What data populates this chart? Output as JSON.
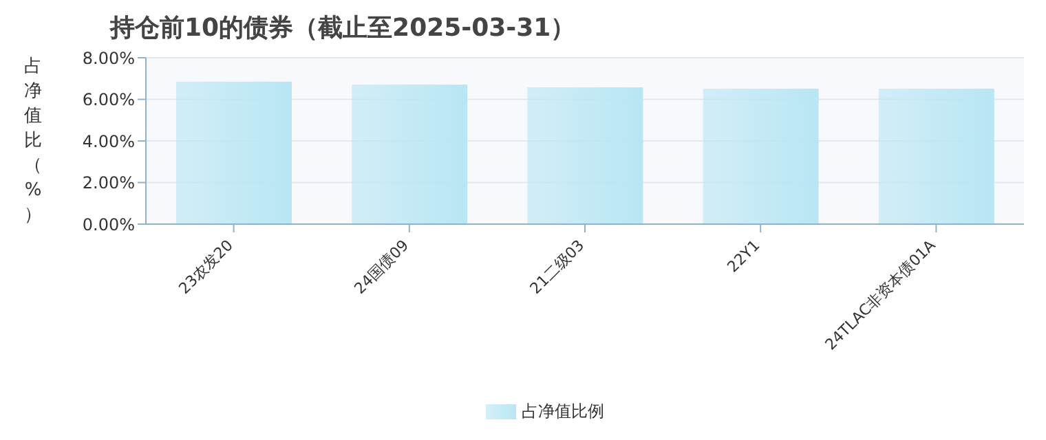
{
  "chart_data": {
    "type": "bar",
    "title": "持仓前10的债券（截止至2025-03-31）",
    "ylabel": "占净值比（%）",
    "categories": [
      "23农发20",
      "24国债09",
      "21二级03",
      "22Y1",
      "24TLAC非资本债01A"
    ],
    "series": [
      {
        "name": "占净值比例",
        "color": "#b8e6f4",
        "values": [
          6.85,
          6.71,
          6.58,
          6.51,
          6.51
        ]
      }
    ],
    "ylim": [
      0,
      8
    ],
    "yticks": [
      {
        "value": 0,
        "label": "0.00%"
      },
      {
        "value": 2,
        "label": "2.00%"
      },
      {
        "value": 4,
        "label": "4.00%"
      },
      {
        "value": 6,
        "label": "6.00%"
      },
      {
        "value": 8,
        "label": "8.00%"
      }
    ],
    "grid": "y",
    "legend": "bottom"
  }
}
